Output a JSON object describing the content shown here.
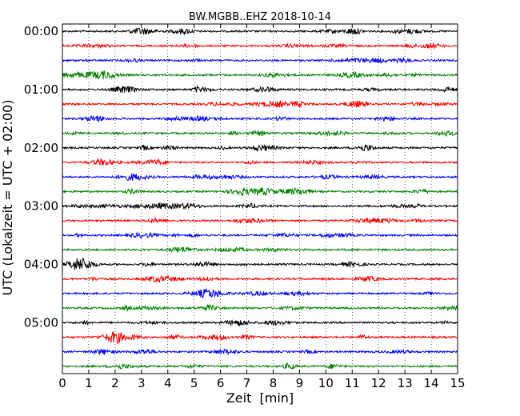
{
  "chart_data": {
    "type": "line",
    "title": "BW.MGBB..EHZ 2018-10-14",
    "xlabel": "Zeit  [min]",
    "ylabel": "UTC (Lokalzeit = UTC + 02:00)",
    "xlim": [
      0,
      15
    ],
    "x_ticks": [
      "0",
      "1",
      "2",
      "3",
      "4",
      "5",
      "6",
      "7",
      "8",
      "9",
      "10",
      "11",
      "12",
      "13",
      "14",
      "15"
    ],
    "y_tick_labels": [
      "00:00",
      "01:00",
      "02:00",
      "03:00",
      "04:00",
      "05:00"
    ],
    "row_minutes": 15,
    "trace_colors": [
      "#000000",
      "#ff0000",
      "#0000ff",
      "#008000"
    ],
    "grid": "vertical-dotted",
    "traces": [
      {
        "start": "00:00",
        "color": "#000000",
        "x_start": 0,
        "x_end": 15
      },
      {
        "start": "00:15",
        "color": "#ff0000",
        "x_start": 0,
        "x_end": 15
      },
      {
        "start": "00:30",
        "color": "#0000ff",
        "x_start": 0,
        "x_end": 15
      },
      {
        "start": "00:45",
        "color": "#008000",
        "x_start": 0,
        "x_end": 15
      },
      {
        "start": "01:00",
        "color": "#000000",
        "x_start": 0,
        "x_end": 15
      },
      {
        "start": "01:15",
        "color": "#ff0000",
        "x_start": 0,
        "x_end": 15
      },
      {
        "start": "01:30",
        "color": "#0000ff",
        "x_start": 0,
        "x_end": 15
      },
      {
        "start": "01:45",
        "color": "#008000",
        "x_start": 0,
        "x_end": 15
      },
      {
        "start": "02:00",
        "color": "#000000",
        "x_start": 0,
        "x_end": 15
      },
      {
        "start": "02:15",
        "color": "#ff0000",
        "x_start": 0,
        "x_end": 15
      },
      {
        "start": "02:30",
        "color": "#0000ff",
        "x_start": 0,
        "x_end": 15
      },
      {
        "start": "02:45",
        "color": "#008000",
        "x_start": 0,
        "x_end": 15
      },
      {
        "start": "03:00",
        "color": "#000000",
        "x_start": 0,
        "x_end": 15
      },
      {
        "start": "03:15",
        "color": "#ff0000",
        "x_start": 0,
        "x_end": 15
      },
      {
        "start": "03:30",
        "color": "#0000ff",
        "x_start": 0,
        "x_end": 15
      },
      {
        "start": "03:45",
        "color": "#008000",
        "x_start": 0,
        "x_end": 15
      },
      {
        "start": "04:00",
        "color": "#000000",
        "x_start": 0,
        "x_end": 15
      },
      {
        "start": "04:15",
        "color": "#ff0000",
        "x_start": 0,
        "x_end": 15
      },
      {
        "start": "04:30",
        "color": "#0000ff",
        "x_start": 0,
        "x_end": 15
      },
      {
        "start": "04:45",
        "color": "#008000",
        "x_start": 0,
        "x_end": 15
      },
      {
        "start": "05:00",
        "color": "#000000",
        "x_start": 0,
        "x_end": 15
      },
      {
        "start": "05:15",
        "color": "#ff0000",
        "x_start": 0,
        "x_end": 15
      },
      {
        "start": "05:30",
        "color": "#0000ff",
        "x_start": 0,
        "x_end": 15
      },
      {
        "start": "05:45",
        "color": "#008000",
        "x_start": 0,
        "x_end": 15
      }
    ]
  }
}
